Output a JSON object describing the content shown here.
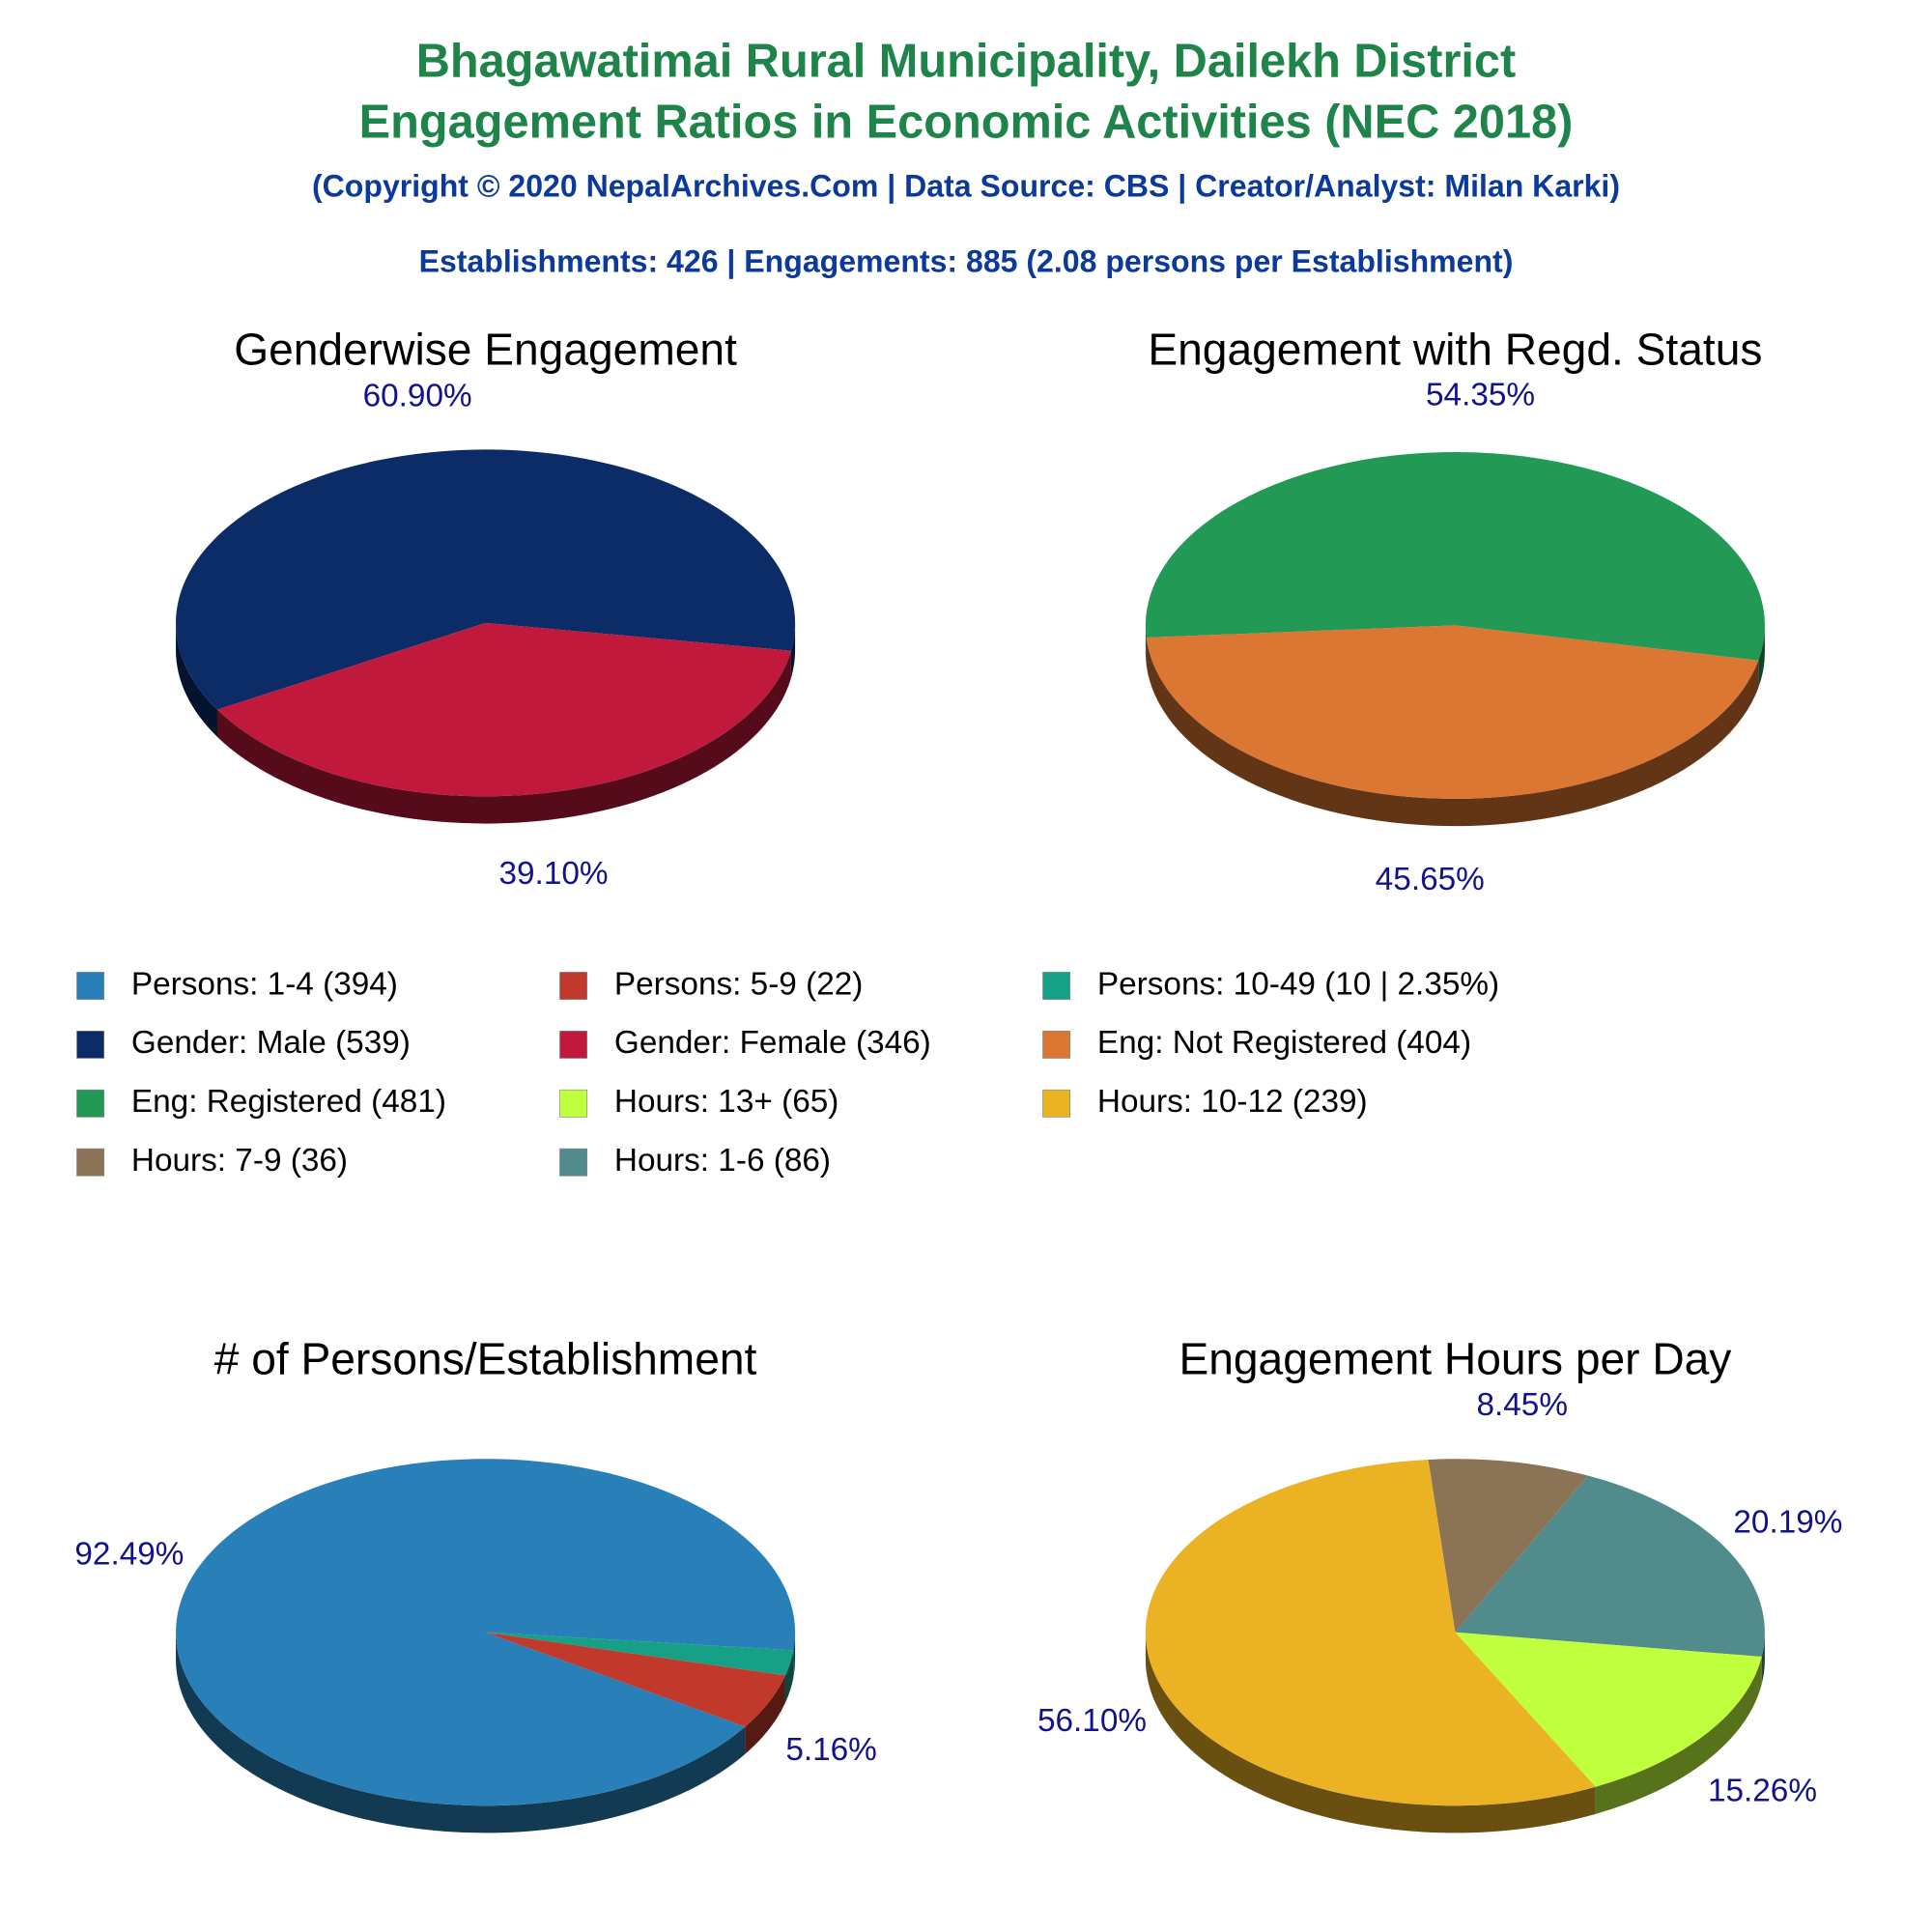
{
  "header": {
    "title": [
      "Bhagawatimai Rural Municipality, Dailekh District",
      "Engagement Ratios in Economic Activities (NEC 2018)"
    ],
    "copyright": "(Copyright © 2020 NepalArchives.Com | Data Source: CBS | Creator/Analyst: Milan Karki)",
    "summary": "Establishments: 426 | Engagements: 885 (2.08 persons per Establishment)"
  },
  "chart_data": [
    {
      "type": "pie",
      "title": "# of Persons/Establishment",
      "categories": [
        "Persons: 1-4 (394)",
        "Persons: 5-9 (22)",
        "Persons: 10-49 (10 | 2.35%)"
      ],
      "values": [
        92.49,
        5.16,
        2.35
      ],
      "value_labels": [
        "92.49%",
        "5.16%",
        null
      ],
      "colors": [
        "#2980b9",
        "#c0392b",
        "#16a085"
      ]
    },
    {
      "type": "pie",
      "title": "Genderwise Engagement",
      "categories": [
        "Gender: Male (539)",
        "Gender: Female (346)"
      ],
      "values": [
        60.9,
        39.1
      ],
      "value_labels": [
        "60.90%",
        "39.10%"
      ],
      "colors": [
        "#0b2c66",
        "#c0193c"
      ]
    },
    {
      "type": "pie",
      "title": "Engagement with Regd. Status",
      "categories": [
        "Eng: Not Registered (404)",
        "Eng: Registered (481)"
      ],
      "values": [
        45.65,
        54.35
      ],
      "value_labels": [
        "45.65%",
        "54.35%"
      ],
      "colors": [
        "#dc7633",
        "#229954"
      ]
    },
    {
      "type": "pie",
      "title": "Engagement Hours per Day",
      "categories": [
        "Hours: 13+ (65)",
        "Hours: 10-12 (239)",
        "Hours: 7-9 (36)",
        "Hours: 1-6 (86)"
      ],
      "values": [
        15.26,
        56.1,
        8.45,
        20.19
      ],
      "value_labels": [
        "15.26%",
        "56.10%",
        "8.45%",
        "20.19%"
      ],
      "colors": [
        "#c0ff3e",
        "#ebb224",
        "#8b7355",
        "#528b8b"
      ]
    }
  ]
}
